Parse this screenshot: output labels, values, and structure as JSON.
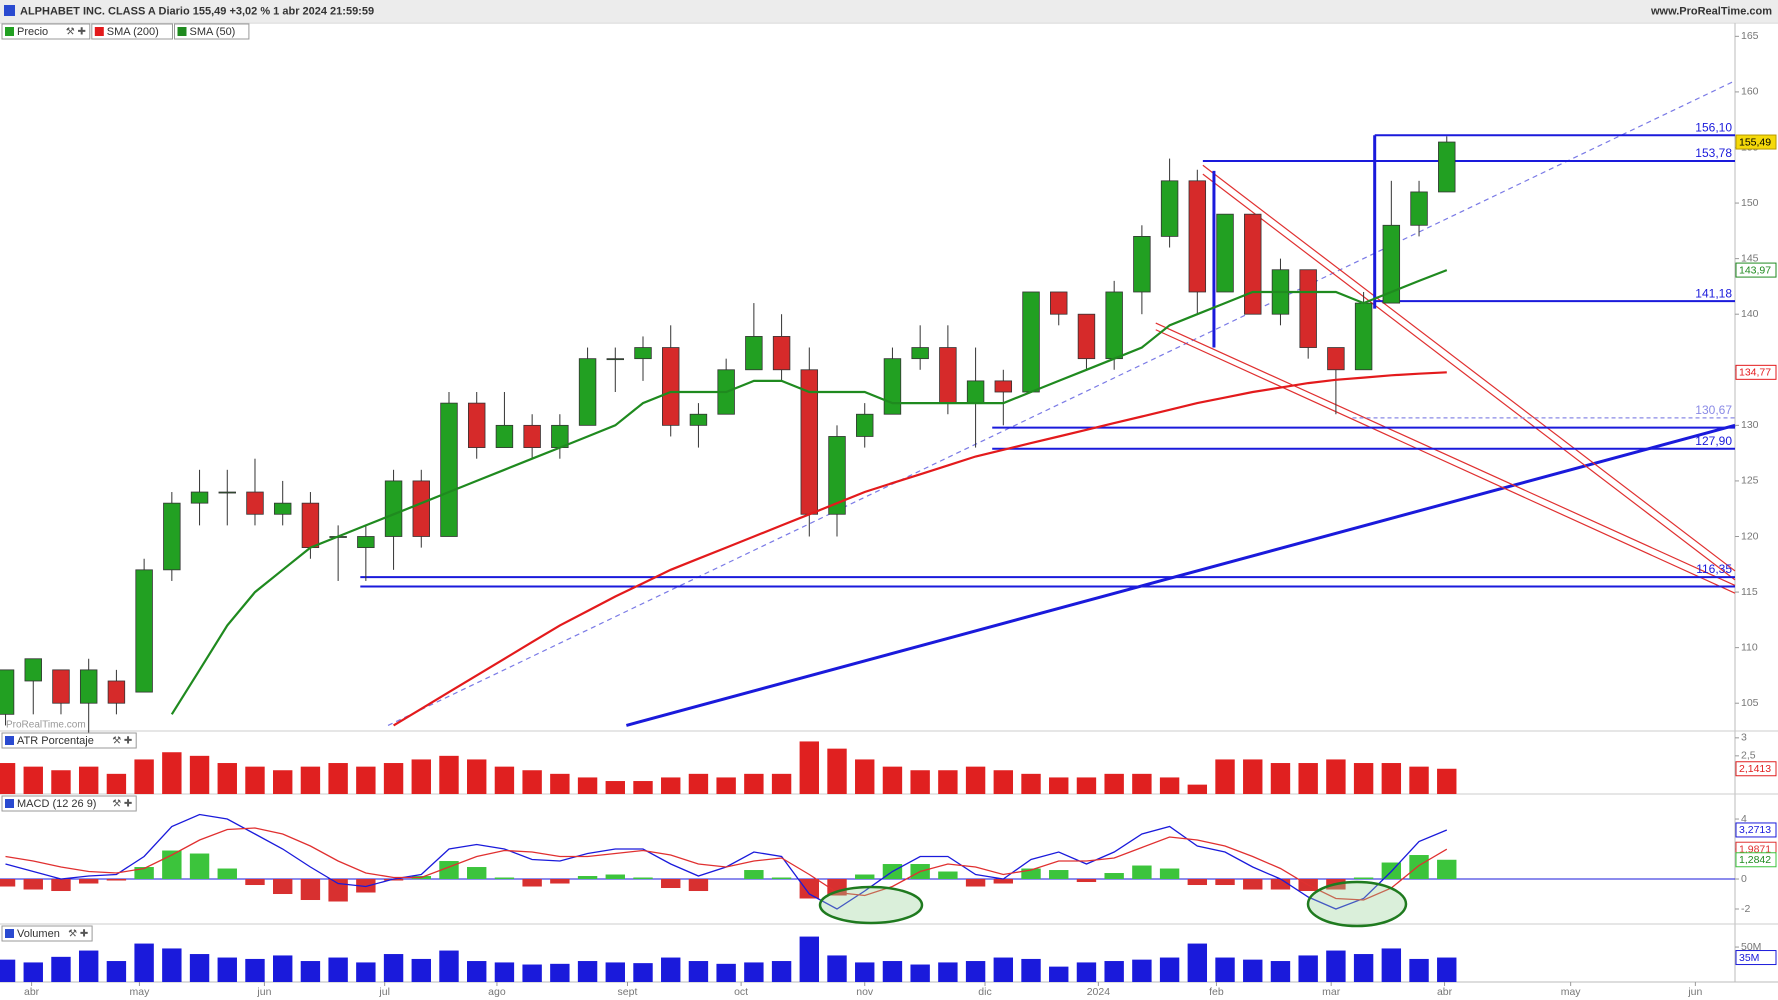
{
  "header": {
    "title": "ALPHABET INC. CLASS A Diario 155,49 +3,02 % 1 abr 2024 21:59:59",
    "site": "www.ProRealTime.com"
  },
  "time": {
    "x": [
      0,
      1,
      2,
      3,
      4,
      5,
      6,
      7,
      8,
      9,
      10,
      11,
      12,
      13,
      14,
      15,
      16,
      17,
      18,
      19,
      20,
      21,
      22,
      23,
      24,
      25,
      26,
      27,
      28,
      29,
      30,
      31,
      32,
      33,
      34,
      35,
      36,
      37,
      38,
      39,
      40,
      41,
      42,
      43,
      44,
      45,
      46,
      47,
      48,
      49,
      50,
      51,
      52
    ],
    "xlim": [
      -0.2,
      62.4
    ],
    "xticks": [
      {
        "value": 0.94,
        "label": "abr"
      },
      {
        "value": 4.83,
        "label": "may"
      },
      {
        "value": 9.34,
        "label": "jun"
      },
      {
        "value": 13.68,
        "label": "jul"
      },
      {
        "value": 17.73,
        "label": "ago"
      },
      {
        "value": 22.44,
        "label": "sept"
      },
      {
        "value": 26.54,
        "label": "oct"
      },
      {
        "value": 31.0,
        "label": "nov"
      },
      {
        "value": 35.34,
        "label": "dic"
      },
      {
        "value": 39.43,
        "label": "2024"
      },
      {
        "value": 43.69,
        "label": "feb"
      },
      {
        "value": 47.83,
        "label": "mar"
      },
      {
        "value": 51.92,
        "label": "abr"
      },
      {
        "value": 56.47,
        "label": "may"
      },
      {
        "value": 60.97,
        "label": "jun"
      }
    ]
  },
  "chart_data": [
    {
      "type": "candlestick",
      "watermark": "ProRealTime.com",
      "ylim": [
        102.5,
        166.2
      ],
      "yticks": [
        105,
        110,
        115,
        120,
        125,
        130,
        135,
        140,
        145,
        150,
        155,
        160,
        165
      ],
      "series": [
        {
          "name": "Precio",
          "up_color": "#22a022",
          "down_color": "#d62a2a",
          "last_label": "155,49",
          "open": [
            104,
            107,
            108,
            105,
            107,
            106,
            117,
            123,
            124,
            124,
            122,
            123,
            120,
            119,
            120,
            125,
            120,
            132,
            128,
            130,
            128,
            130,
            136,
            136,
            137,
            130,
            131,
            135,
            138,
            135,
            122,
            129,
            131,
            136,
            137,
            132,
            134,
            133,
            142,
            140,
            136,
            142,
            147,
            152,
            142,
            149,
            140,
            144,
            137,
            135,
            141,
            148,
            151
          ],
          "high": [
            108,
            109,
            108,
            109,
            108,
            118,
            124,
            126,
            126,
            127,
            125,
            124,
            121,
            121,
            126,
            126,
            133,
            133,
            133,
            131,
            131,
            137,
            137,
            138,
            139,
            132,
            136,
            141,
            140,
            137,
            130,
            132,
            137,
            139,
            139,
            137,
            135,
            142,
            142,
            140,
            143,
            148,
            154,
            153,
            149,
            149,
            145,
            144,
            137,
            142,
            152,
            152,
            156
          ],
          "low": [
            103,
            104,
            104,
            102,
            104,
            106,
            116,
            121,
            121,
            121,
            121,
            118,
            116,
            116,
            117,
            119,
            120,
            127,
            128,
            127,
            127,
            130,
            133,
            134,
            129,
            128,
            131,
            135,
            134,
            120,
            120,
            128,
            131,
            135,
            131,
            128,
            130,
            133,
            139,
            135,
            135,
            140,
            146,
            140,
            142,
            140,
            139,
            136,
            131,
            135,
            141,
            147,
            151
          ],
          "close": [
            108,
            109,
            105,
            108,
            105,
            117,
            123,
            124,
            124,
            122,
            123,
            119,
            120,
            120,
            125,
            120,
            132,
            128,
            130,
            128,
            130,
            136,
            136,
            137,
            130,
            131,
            135,
            138,
            135,
            122,
            129,
            131,
            136,
            137,
            132,
            134,
            133,
            142,
            140,
            136,
            142,
            147,
            152,
            142,
            149,
            140,
            144,
            137,
            135,
            141,
            148,
            151,
            155.49
          ]
        },
        {
          "name": "SMA (200)",
          "color": "#e31a1c",
          "last_label": "134,77",
          "values": [
            null,
            null,
            null,
            null,
            null,
            null,
            null,
            null,
            null,
            null,
            null,
            null,
            null,
            null,
            103,
            104.5,
            106,
            107.5,
            109,
            110.5,
            112,
            113.3,
            114.6,
            115.8,
            117,
            118,
            119,
            120,
            121,
            122,
            123,
            124,
            124.8,
            125.6,
            126.4,
            127.2,
            127.8,
            128.4,
            129,
            129.6,
            130.2,
            130.8,
            131.4,
            132,
            132.5,
            133,
            133.4,
            133.8,
            134.1,
            134.3,
            134.5,
            134.65,
            134.77
          ]
        },
        {
          "name": "SMA (50)",
          "color": "#1f8a1f",
          "last_label": "143,97",
          "values": [
            null,
            null,
            null,
            null,
            null,
            null,
            104,
            108,
            112,
            115,
            117,
            119,
            120,
            121,
            122,
            123,
            124,
            125,
            126,
            127,
            128,
            129,
            130,
            132,
            133,
            133,
            133,
            134,
            134,
            133,
            133,
            133,
            132,
            132,
            132,
            132,
            132,
            133,
            134,
            135,
            136,
            137,
            139,
            140,
            141,
            142,
            142,
            142,
            142,
            141,
            142,
            143,
            143.97
          ]
        }
      ],
      "levels": [
        {
          "value": 156.1,
          "label": "156,10",
          "from": 49.4,
          "color": "#1a1adb"
        },
        {
          "value": 153.78,
          "label": "153,78",
          "from": 43.2,
          "color": "#1a1adb"
        },
        {
          "value": 141.18,
          "label": "141,18",
          "from": 49.4,
          "color": "#1a1adb"
        },
        {
          "value": 130.67,
          "label": "130,67",
          "from": 48.6,
          "color": "#8a8ae6",
          "dashed": true
        },
        {
          "value": 129.8,
          "from": 35.6,
          "color": "#1a1adb"
        },
        {
          "value": 127.9,
          "label": "127,90",
          "from": 35.6,
          "color": "#1a1adb"
        },
        {
          "value": 116.35,
          "label": "116,35",
          "from": 12.8,
          "color": "#1a1adb"
        },
        {
          "value": 115.5,
          "from": 12.8,
          "color": "#1a1adb"
        }
      ],
      "trendlines": [
        {
          "from": [
            13.8,
            103
          ],
          "to": [
            62.4,
            161
          ],
          "color": "#7a7ae6",
          "dashed": true
        },
        {
          "from": [
            22.4,
            103
          ],
          "to": [
            62.4,
            130
          ],
          "color": "#1a1adb",
          "thick": true
        },
        {
          "from": [
            43.2,
            153.4
          ],
          "to": [
            62.4,
            116.9
          ],
          "color": "#e03030"
        },
        {
          "from": [
            43.2,
            152.6
          ],
          "to": [
            62.4,
            116.1
          ],
          "color": "#e03030"
        },
        {
          "from": [
            41.5,
            139.2
          ],
          "to": [
            62.4,
            115.6
          ],
          "color": "#e03030"
        },
        {
          "from": [
            41.5,
            138.6
          ],
          "to": [
            62.4,
            114.9
          ],
          "color": "#e03030"
        },
        {
          "from": [
            43.6,
            152.9
          ],
          "to": [
            43.6,
            137
          ],
          "color": "#1a1adb",
          "thick": true
        },
        {
          "from": [
            49.4,
            156.1
          ],
          "to": [
            49.4,
            140.5
          ],
          "color": "#1a1adb",
          "thick": true
        }
      ]
    },
    {
      "type": "bar",
      "title": "ATR Porcentaje",
      "color": "#e02020",
      "last_label": "2,1413",
      "ylim": [
        1.44,
        3.19
      ],
      "yticks": [
        3,
        {
          "value": 2.5,
          "label": "2,5"
        }
      ],
      "values": [
        2.3,
        2.2,
        2.1,
        2.2,
        2.0,
        2.4,
        2.6,
        2.5,
        2.3,
        2.2,
        2.1,
        2.2,
        2.3,
        2.2,
        2.3,
        2.4,
        2.5,
        2.4,
        2.2,
        2.1,
        2.0,
        1.9,
        1.8,
        1.8,
        1.9,
        2.0,
        1.9,
        2.0,
        2.0,
        2.9,
        2.7,
        2.4,
        2.2,
        2.1,
        2.1,
        2.2,
        2.1,
        2.0,
        1.9,
        1.9,
        2.0,
        2.0,
        1.9,
        1.7,
        2.4,
        2.4,
        2.3,
        2.3,
        2.4,
        2.3,
        2.3,
        2.2,
        2.1413
      ]
    },
    {
      "type": "macd",
      "title": "MACD (12 26 9)",
      "ylim": [
        -3,
        5.67
      ],
      "yticks": [
        4,
        2,
        0,
        -2
      ],
      "series": [
        {
          "color": "#1a1adb",
          "last_label": "3,2713",
          "values": [
            1.0,
            0.5,
            0.0,
            0.2,
            0.3,
            1.5,
            3.5,
            4.3,
            4.0,
            3.0,
            2.0,
            0.8,
            -0.3,
            -0.5,
            0.0,
            0.3,
            2.0,
            2.3,
            2.0,
            1.3,
            1.2,
            1.7,
            2.0,
            2.0,
            1.0,
            0.2,
            0.8,
            1.8,
            1.5,
            -1.0,
            -2.0,
            -0.8,
            0.5,
            1.5,
            1.5,
            0.3,
            0.0,
            1.3,
            1.8,
            1.0,
            1.8,
            3.0,
            3.5,
            2.2,
            1.8,
            0.8,
            0.0,
            -1.2,
            -2.0,
            -1.3,
            0.5,
            2.5,
            3.2713
          ]
        },
        {
          "color": "#e03030",
          "last_label": "1,9871",
          "values": [
            1.5,
            1.2,
            0.8,
            0.5,
            0.4,
            0.7,
            1.6,
            2.6,
            3.3,
            3.4,
            3.0,
            2.2,
            1.2,
            0.4,
            0.1,
            0.1,
            0.8,
            1.5,
            1.9,
            1.8,
            1.5,
            1.5,
            1.7,
            1.9,
            1.6,
            1.0,
            0.8,
            1.2,
            1.4,
            0.3,
            -0.9,
            -1.1,
            -0.5,
            0.5,
            1.0,
            0.8,
            0.3,
            0.6,
            1.2,
            1.2,
            1.4,
            2.1,
            2.8,
            2.6,
            2.2,
            1.5,
            0.7,
            -0.4,
            -1.3,
            -1.4,
            -0.6,
            0.9,
            1.9871
          ]
        }
      ],
      "histogram": {
        "up_color": "#3cc43c",
        "down_color": "#d83030",
        "last_label": "1,2842",
        "values": [
          -0.5,
          -0.7,
          -0.8,
          -0.3,
          -0.1,
          0.8,
          1.9,
          1.7,
          0.7,
          -0.4,
          -1.0,
          -1.4,
          -1.5,
          -0.9,
          -0.1,
          0.2,
          1.2,
          0.8,
          0.1,
          -0.5,
          -0.3,
          0.2,
          0.3,
          0.1,
          -0.6,
          -0.8,
          0.0,
          0.6,
          0.1,
          -1.3,
          -1.1,
          0.3,
          1.0,
          1.0,
          0.5,
          -0.5,
          -0.3,
          0.7,
          0.6,
          -0.2,
          0.4,
          0.9,
          0.7,
          -0.4,
          -0.4,
          -0.7,
          -0.7,
          -0.8,
          -0.7,
          0.1,
          1.1,
          1.6,
          1.2842
        ]
      }
    },
    {
      "type": "bar",
      "title": "Volumen",
      "color": "#1a1adb",
      "last_label": "35M",
      "ylim": [
        0,
        83000000
      ],
      "yticks": [
        {
          "value": 50000000,
          "label": "50M"
        }
      ],
      "values": [
        32000000,
        28000000,
        36000000,
        45000000,
        30000000,
        55000000,
        48000000,
        40000000,
        35000000,
        33000000,
        38000000,
        30000000,
        35000000,
        28000000,
        40000000,
        33000000,
        45000000,
        30000000,
        28000000,
        25000000,
        26000000,
        30000000,
        28000000,
        27000000,
        35000000,
        30000000,
        26000000,
        28000000,
        30000000,
        65000000,
        38000000,
        28000000,
        30000000,
        25000000,
        28000000,
        30000000,
        35000000,
        33000000,
        22000000,
        28000000,
        30000000,
        32000000,
        35000000,
        55000000,
        35000000,
        32000000,
        30000000,
        38000000,
        45000000,
        40000000,
        48000000,
        33000000,
        35000000
      ]
    }
  ]
}
